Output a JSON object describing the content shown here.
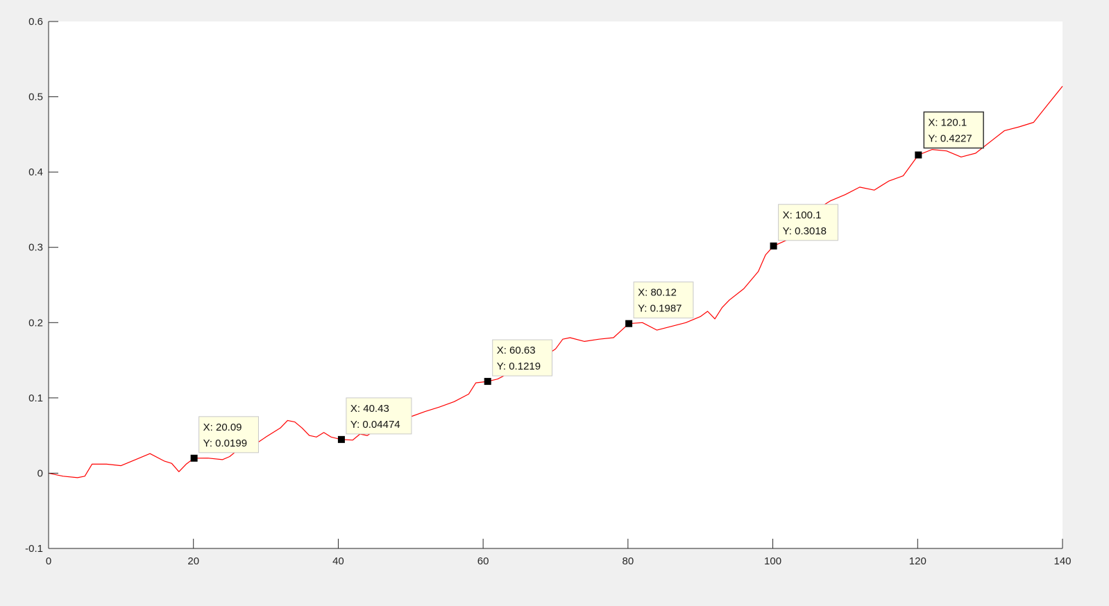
{
  "chart_data": {
    "type": "line",
    "title": "",
    "xlabel": "",
    "ylabel": "",
    "xlim": [
      0,
      140
    ],
    "ylim": [
      -0.1,
      0.6
    ],
    "xticks": [
      0,
      20,
      40,
      60,
      80,
      100,
      120,
      140
    ],
    "xtick_labels": [
      "0",
      "20",
      "40",
      "60",
      "80",
      "100",
      "120",
      "140"
    ],
    "yticks": [
      -0.1,
      0,
      0.1,
      0.2,
      0.3,
      0.4,
      0.5,
      0.6
    ],
    "ytick_labels": [
      "-0.1",
      "0",
      "0.1",
      "0.2",
      "0.3",
      "0.4",
      "0.5",
      "0.6"
    ],
    "grid": false,
    "line_color": "#ff0000",
    "series": [
      {
        "values": [
          [
            0,
            0.0
          ],
          [
            2,
            -0.004
          ],
          [
            4,
            -0.006
          ],
          [
            5,
            -0.004
          ],
          [
            6,
            0.012
          ],
          [
            8,
            0.012
          ],
          [
            10,
            0.01
          ],
          [
            12,
            0.018
          ],
          [
            14,
            0.026
          ],
          [
            16,
            0.016
          ],
          [
            17,
            0.013
          ],
          [
            18,
            0.002
          ],
          [
            19,
            0.012
          ],
          [
            20.09,
            0.0199
          ],
          [
            22,
            0.02
          ],
          [
            24,
            0.018
          ],
          [
            25,
            0.022
          ],
          [
            26,
            0.03
          ],
          [
            28,
            0.035
          ],
          [
            30,
            0.048
          ],
          [
            32,
            0.06
          ],
          [
            33,
            0.07
          ],
          [
            34,
            0.068
          ],
          [
            35,
            0.06
          ],
          [
            36,
            0.05
          ],
          [
            37,
            0.048
          ],
          [
            38,
            0.054
          ],
          [
            39,
            0.048
          ],
          [
            40.43,
            0.04474
          ],
          [
            42,
            0.044
          ],
          [
            43,
            0.052
          ],
          [
            44,
            0.05
          ],
          [
            46,
            0.062
          ],
          [
            48,
            0.068
          ],
          [
            50,
            0.075
          ],
          [
            52,
            0.082
          ],
          [
            54,
            0.088
          ],
          [
            56,
            0.095
          ],
          [
            58,
            0.105
          ],
          [
            59,
            0.12
          ],
          [
            60.63,
            0.1219
          ],
          [
            62,
            0.125
          ],
          [
            64,
            0.135
          ],
          [
            66,
            0.142
          ],
          [
            68,
            0.152
          ],
          [
            70,
            0.165
          ],
          [
            71,
            0.178
          ],
          [
            72,
            0.18
          ],
          [
            74,
            0.175
          ],
          [
            76,
            0.178
          ],
          [
            78,
            0.18
          ],
          [
            80.12,
            0.1987
          ],
          [
            82,
            0.2
          ],
          [
            84,
            0.19
          ],
          [
            86,
            0.195
          ],
          [
            88,
            0.2
          ],
          [
            90,
            0.208
          ],
          [
            91,
            0.215
          ],
          [
            92,
            0.205
          ],
          [
            93,
            0.22
          ],
          [
            94,
            0.23
          ],
          [
            96,
            0.245
          ],
          [
            98,
            0.268
          ],
          [
            99,
            0.29
          ],
          [
            100.1,
            0.3018
          ],
          [
            102,
            0.31
          ],
          [
            104,
            0.33
          ],
          [
            106,
            0.35
          ],
          [
            108,
            0.362
          ],
          [
            110,
            0.37
          ],
          [
            112,
            0.38
          ],
          [
            114,
            0.376
          ],
          [
            116,
            0.388
          ],
          [
            118,
            0.395
          ],
          [
            120.1,
            0.4227
          ],
          [
            122,
            0.43
          ],
          [
            124,
            0.428
          ],
          [
            126,
            0.42
          ],
          [
            128,
            0.425
          ],
          [
            130,
            0.44
          ],
          [
            132,
            0.455
          ],
          [
            134,
            0.46
          ],
          [
            136,
            0.466
          ],
          [
            138,
            0.49
          ],
          [
            140,
            0.514
          ]
        ]
      }
    ],
    "datatips": [
      {
        "x": 20.09,
        "y": 0.0199,
        "xlabel": "X: 20.09",
        "ylabel": "Y: 0.0199"
      },
      {
        "x": 40.43,
        "y": 0.04474,
        "xlabel": "X: 40.43",
        "ylabel": "Y: 0.04474"
      },
      {
        "x": 60.63,
        "y": 0.1219,
        "xlabel": "X: 60.63",
        "ylabel": "Y: 0.1219"
      },
      {
        "x": 80.12,
        "y": 0.1987,
        "xlabel": "X: 80.12",
        "ylabel": "Y: 0.1987"
      },
      {
        "x": 100.1,
        "y": 0.3018,
        "xlabel": "X: 100.1",
        "ylabel": "Y: 0.3018"
      },
      {
        "x": 120.1,
        "y": 0.4227,
        "xlabel": "X: 120.1",
        "ylabel": "Y: 0.4227"
      }
    ]
  }
}
